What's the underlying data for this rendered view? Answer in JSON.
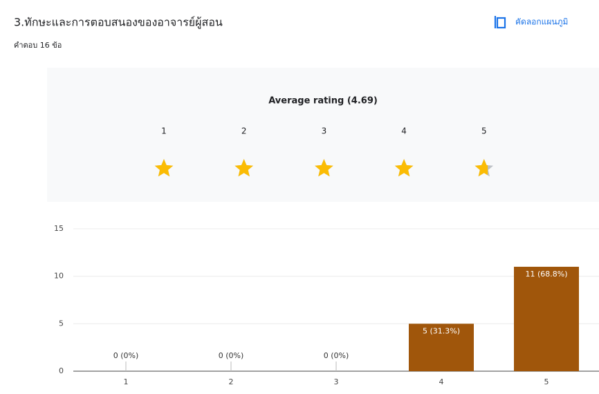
{
  "header": {
    "title": "3.ทักษะและการตอบสนองของอาจารย์ผู้สอน",
    "subtitle": "คำตอบ 16 ข้อ",
    "copy_button": "คัดลอกแผนภูมิ"
  },
  "rating": {
    "title": "Average rating (4.69)",
    "average": 4.69,
    "labels": [
      1,
      2,
      3,
      4,
      5
    ]
  },
  "chart_data": {
    "type": "bar",
    "categories": [
      "1",
      "2",
      "3",
      "4",
      "5"
    ],
    "values": [
      0,
      0,
      0,
      5,
      11
    ],
    "value_labels": [
      "0 (0%)",
      "0 (0%)",
      "0 (0%)",
      "5 (31.3%)",
      "11 (68.8%)"
    ],
    "color": "#a0560b",
    "ylim": [
      0,
      15
    ],
    "yticks": [
      0,
      5,
      10,
      15
    ],
    "grid": true
  }
}
